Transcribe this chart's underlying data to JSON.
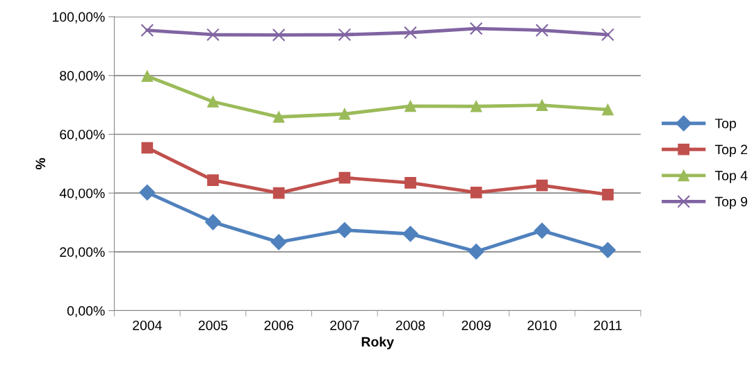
{
  "chart_data": {
    "type": "line",
    "xlabel": "Roky",
    "ylabel": "%",
    "categories": [
      "2004",
      "2005",
      "2006",
      "2007",
      "2008",
      "2009",
      "2010",
      "2011"
    ],
    "series": [
      {
        "name": "Top",
        "color": "#4f81bd",
        "marker": "diamond",
        "values": [
          40.2,
          30.1,
          23.3,
          27.4,
          26.1,
          20.1,
          27.2,
          20.6
        ]
      },
      {
        "name": "Top 2",
        "color": "#c0504d",
        "marker": "square",
        "values": [
          55.4,
          44.4,
          40.0,
          45.2,
          43.5,
          40.2,
          42.6,
          39.5
        ]
      },
      {
        "name": "Top 4",
        "color": "#9bbb59",
        "marker": "triangle",
        "values": [
          79.8,
          71.1,
          65.9,
          66.9,
          69.6,
          69.5,
          69.9,
          68.4
        ]
      },
      {
        "name": "Top 9",
        "color": "#8064a2",
        "marker": "cross",
        "values": [
          95.4,
          93.9,
          93.8,
          93.9,
          94.6,
          96.0,
          95.4,
          93.9
        ]
      }
    ],
    "ylim": [
      0,
      100
    ],
    "yticks": [
      {
        "value": 0,
        "label": "0,00%"
      },
      {
        "value": 20,
        "label": "20,00%"
      },
      {
        "value": 40,
        "label": "40,00%"
      },
      {
        "value": 60,
        "label": "60,00%"
      },
      {
        "value": 80,
        "label": "80,00%"
      },
      {
        "value": 100,
        "label": "100,00%"
      }
    ],
    "grid": "y",
    "legend": "right",
    "line_style": "solid"
  }
}
